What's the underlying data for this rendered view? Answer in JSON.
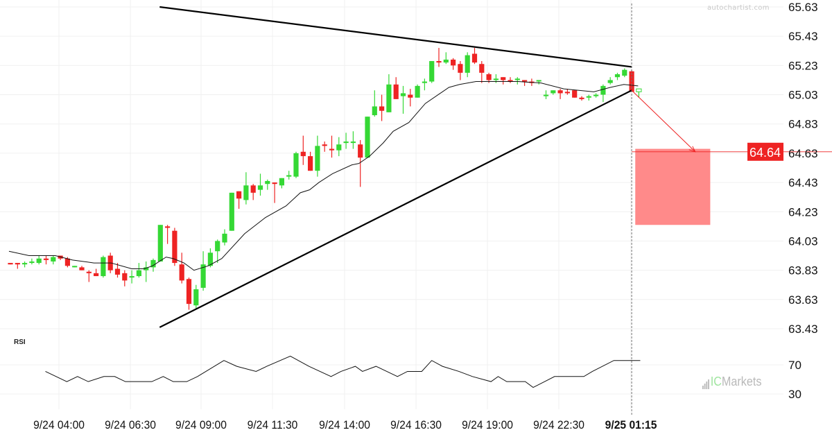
{
  "watermarks": {
    "site": "autochartist.com",
    "broker_ic": "IC",
    "broker_rest": "Markets"
  },
  "colors": {
    "up": "#35d835",
    "down": "#ee2323",
    "zone": "#ff8a8a",
    "forecast": "#ee2323",
    "ma": "#111111",
    "trend": "#000000",
    "grid": "#f0f0f0"
  },
  "chart_data": {
    "type": "candlestick",
    "title": "",
    "price_axis": {
      "ticks": [
        "65.63",
        "65.43",
        "65.23",
        "65.03",
        "64.83",
        "64.63",
        "64.43",
        "64.23",
        "64.03",
        "63.83",
        "63.63",
        "63.43"
      ],
      "range": [
        63.43,
        65.63
      ]
    },
    "time_axis": {
      "labels": [
        {
          "index": 6.8,
          "text": "9/24 04:00",
          "bold": false
        },
        {
          "index": 16.8,
          "text": "9/24 06:30",
          "bold": false
        },
        {
          "index": 26.7,
          "text": "9/24 09:00",
          "bold": false
        },
        {
          "index": 36.7,
          "text": "9/24 11:30",
          "bold": false
        },
        {
          "index": 46.8,
          "text": "9/24 14:00",
          "bold": false
        },
        {
          "index": 56.8,
          "text": "9/24 16:30",
          "bold": false
        },
        {
          "index": 66.8,
          "text": "9/24 19:00",
          "bold": false
        },
        {
          "index": 76.8,
          "text": "9/24 22:30",
          "bold": false
        },
        {
          "index": 86.9,
          "text": "9/25 01:15",
          "bold": true
        }
      ]
    },
    "candles_ohlc": [
      [
        63.88,
        63.88,
        63.87,
        63.87
      ],
      [
        63.88,
        63.88,
        63.84,
        63.87
      ],
      [
        63.87,
        63.89,
        63.85,
        63.88
      ],
      [
        63.88,
        63.91,
        63.87,
        63.89
      ],
      [
        63.88,
        63.93,
        63.87,
        63.91
      ],
      [
        63.91,
        63.93,
        63.87,
        63.9
      ],
      [
        63.89,
        63.93,
        63.87,
        63.92
      ],
      [
        63.93,
        63.93,
        63.9,
        63.91
      ],
      [
        63.91,
        63.92,
        63.85,
        63.86
      ],
      [
        63.85,
        63.86,
        63.85,
        63.86
      ],
      [
        63.85,
        63.86,
        63.83,
        63.83
      ],
      [
        63.82,
        63.83,
        63.75,
        63.81
      ],
      [
        63.81,
        63.84,
        63.79,
        63.79
      ],
      [
        63.79,
        63.93,
        63.78,
        63.92
      ],
      [
        63.93,
        63.95,
        63.81,
        63.83
      ],
      [
        63.84,
        63.88,
        63.78,
        63.8
      ],
      [
        63.81,
        63.83,
        63.72,
        63.76
      ],
      [
        63.78,
        63.83,
        63.74,
        63.79
      ],
      [
        63.79,
        63.88,
        63.78,
        63.83
      ],
      [
        63.83,
        63.89,
        63.75,
        63.85
      ],
      [
        63.85,
        63.91,
        63.82,
        63.9
      ],
      [
        63.89,
        64.14,
        63.89,
        64.14
      ],
      [
        64.13,
        64.14,
        64.01,
        64.12
      ],
      [
        64.1,
        64.12,
        63.86,
        63.88
      ],
      [
        63.87,
        63.95,
        63.74,
        63.76
      ],
      [
        63.77,
        63.78,
        63.56,
        63.6
      ],
      [
        63.59,
        63.73,
        63.57,
        63.7
      ],
      [
        63.71,
        63.96,
        63.69,
        63.87
      ],
      [
        63.86,
        63.98,
        63.85,
        63.95
      ],
      [
        63.96,
        64.04,
        63.88,
        64.03
      ],
      [
        64.02,
        64.11,
        64.0,
        64.08
      ],
      [
        64.1,
        64.36,
        64.1,
        64.36
      ],
      [
        64.37,
        64.37,
        64.25,
        64.32
      ],
      [
        64.31,
        64.5,
        64.28,
        64.41
      ],
      [
        64.41,
        64.42,
        64.31,
        64.36
      ],
      [
        64.38,
        64.49,
        64.34,
        64.41
      ],
      [
        64.42,
        64.45,
        64.38,
        64.44
      ],
      [
        64.43,
        64.43,
        64.29,
        64.42
      ],
      [
        64.41,
        64.46,
        64.39,
        64.46
      ],
      [
        64.47,
        64.51,
        64.45,
        64.48
      ],
      [
        64.47,
        64.64,
        64.46,
        64.63
      ],
      [
        64.64,
        64.75,
        64.55,
        64.61
      ],
      [
        64.61,
        64.64,
        64.51,
        64.51
      ],
      [
        64.51,
        64.75,
        64.47,
        64.68
      ],
      [
        64.69,
        64.71,
        64.64,
        64.68
      ],
      [
        64.66,
        64.75,
        64.6,
        64.65
      ],
      [
        64.65,
        64.74,
        64.61,
        64.69
      ],
      [
        64.7,
        64.77,
        64.66,
        64.71
      ],
      [
        64.7,
        64.78,
        64.66,
        64.71
      ],
      [
        64.69,
        64.72,
        64.4,
        64.6
      ],
      [
        64.6,
        64.88,
        64.6,
        64.88
      ],
      [
        64.89,
        65.06,
        64.88,
        64.95
      ],
      [
        64.95,
        65.03,
        64.85,
        64.92
      ],
      [
        64.91,
        65.17,
        64.91,
        65.1
      ],
      [
        65.1,
        65.15,
        65.0,
        65.0
      ],
      [
        65.02,
        65.09,
        64.9,
        65.04
      ],
      [
        65.03,
        65.07,
        64.95,
        65.01
      ],
      [
        65.01,
        65.1,
        65.01,
        65.09
      ],
      [
        65.11,
        65.14,
        65.06,
        65.12
      ],
      [
        65.12,
        65.26,
        65.11,
        65.26
      ],
      [
        65.26,
        65.35,
        65.22,
        65.25
      ],
      [
        65.25,
        65.32,
        65.24,
        65.27
      ],
      [
        65.27,
        65.28,
        65.2,
        65.23
      ],
      [
        65.24,
        65.26,
        65.13,
        65.18
      ],
      [
        65.18,
        65.32,
        65.15,
        65.3
      ],
      [
        65.31,
        65.35,
        65.24,
        65.25
      ],
      [
        65.24,
        65.26,
        65.11,
        65.18
      ],
      [
        65.17,
        65.18,
        65.11,
        65.13
      ],
      [
        65.13,
        65.17,
        65.11,
        65.14
      ],
      [
        65.15,
        65.15,
        65.1,
        65.13
      ],
      [
        65.13,
        65.15,
        65.11,
        65.12
      ],
      [
        65.13,
        65.15,
        65.1,
        65.14
      ],
      [
        65.13,
        65.13,
        65.09,
        65.12
      ],
      [
        65.12,
        65.14,
        65.09,
        65.11
      ],
      [
        65.12,
        65.13,
        65.1,
        65.13
      ],
      [
        65.02,
        65.06,
        65.0,
        65.03
      ],
      [
        65.04,
        65.06,
        65.03,
        65.06
      ],
      [
        65.06,
        65.07,
        65.0,
        65.04
      ],
      [
        65.05,
        65.07,
        65.03,
        65.04
      ],
      [
        65.06,
        65.06,
        65.01,
        65.01
      ],
      [
        65.01,
        65.02,
        64.99,
        65.0
      ],
      [
        65.01,
        65.03,
        64.99,
        65.02
      ],
      [
        65.02,
        65.04,
        65.01,
        65.03
      ],
      [
        65.03,
        65.1,
        64.98,
        65.09
      ],
      [
        65.11,
        65.15,
        65.1,
        65.13
      ],
      [
        65.15,
        65.18,
        65.13,
        65.17
      ],
      [
        65.16,
        65.21,
        65.15,
        65.2
      ],
      [
        65.19,
        65.2,
        65.05,
        65.05
      ],
      [
        65.05,
        65.07,
        65.01,
        65.07
      ]
    ],
    "last_candle_hollow": true,
    "moving_average": [
      [
        -0.2,
        63.96
      ],
      [
        2.6,
        63.93
      ],
      [
        6.3,
        63.93
      ],
      [
        8.7,
        63.9
      ],
      [
        11.7,
        63.88
      ],
      [
        14.1,
        63.88
      ],
      [
        17,
        63.84
      ],
      [
        18.7,
        63.84
      ],
      [
        19.9,
        63.86
      ],
      [
        21.8,
        63.92
      ],
      [
        22.8,
        63.91
      ],
      [
        24.3,
        63.88
      ],
      [
        25.7,
        63.83
      ],
      [
        27.7,
        63.86
      ],
      [
        29.6,
        63.91
      ],
      [
        32.8,
        64.08
      ],
      [
        35.7,
        64.19
      ],
      [
        38.6,
        64.27
      ],
      [
        40.6,
        64.36
      ],
      [
        41.9,
        64.38
      ],
      [
        43.2,
        64.43
      ],
      [
        45.1,
        64.49
      ],
      [
        47.8,
        64.55
      ],
      [
        48.8,
        64.56
      ],
      [
        50.3,
        64.61
      ],
      [
        52.2,
        64.7
      ],
      [
        53.6,
        64.78
      ],
      [
        55.8,
        64.84
      ],
      [
        58.1,
        64.97
      ],
      [
        61.4,
        65.08
      ],
      [
        62.9,
        65.1
      ],
      [
        65.2,
        65.12
      ],
      [
        71.1,
        65.12
      ],
      [
        74.3,
        65.11
      ],
      [
        77.5,
        65.07
      ],
      [
        81.7,
        65.05
      ],
      [
        84,
        65.08
      ],
      [
        85.9,
        65.1
      ],
      [
        87.9,
        65.09
      ]
    ],
    "trendlines": [
      {
        "name": "resistance",
        "from": [
          20.9,
          65.63
        ],
        "to": [
          87,
          65.22
        ]
      },
      {
        "name": "support",
        "from": [
          20.9,
          63.44
        ],
        "to": [
          87,
          65.06
        ]
      }
    ],
    "current_index": 87,
    "forecast": {
      "from": [
        87,
        65.06
      ],
      "to": [
        95.9,
        64.64
      ],
      "target_label": "64.64",
      "target_price": 64.64,
      "zone": {
        "start": 87.5,
        "end": 98,
        "top": 64.66,
        "bottom": 64.14
      }
    },
    "rsi": {
      "title": "RSI",
      "ticks": [
        "70",
        "30"
      ],
      "levels": [
        70,
        30
      ],
      "points": [
        [
          4.9,
          61
        ],
        [
          7.9,
          47
        ],
        [
          9.4,
          54
        ],
        [
          10.9,
          47
        ],
        [
          13.1,
          54
        ],
        [
          14.6,
          54
        ],
        [
          16.1,
          47
        ],
        [
          19.8,
          47
        ],
        [
          21.4,
          54
        ],
        [
          22.8,
          47
        ],
        [
          24.7,
          47
        ],
        [
          26.2,
          54
        ],
        [
          29.9,
          76
        ],
        [
          31.7,
          68
        ],
        [
          34.4,
          61
        ],
        [
          35.9,
          68
        ],
        [
          39.2,
          82
        ],
        [
          41.8,
          68
        ],
        [
          44.9,
          54
        ],
        [
          46.3,
          61
        ],
        [
          48.3,
          68
        ],
        [
          49.3,
          61
        ],
        [
          51.2,
          68
        ],
        [
          52.7,
          61
        ],
        [
          54.2,
          54
        ],
        [
          55.6,
          61
        ],
        [
          57.6,
          61
        ],
        [
          59,
          76
        ],
        [
          60.5,
          68
        ],
        [
          62.8,
          61
        ],
        [
          64.7,
          54
        ],
        [
          67.3,
          47
        ],
        [
          68.3,
          54
        ],
        [
          69.5,
          47
        ],
        [
          72.1,
          47
        ],
        [
          73.2,
          39
        ],
        [
          74.8,
          47
        ],
        [
          76.2,
          54
        ],
        [
          80.3,
          54
        ],
        [
          81.5,
          61
        ],
        [
          84.5,
          76
        ],
        [
          88.2,
          76
        ]
      ]
    }
  }
}
